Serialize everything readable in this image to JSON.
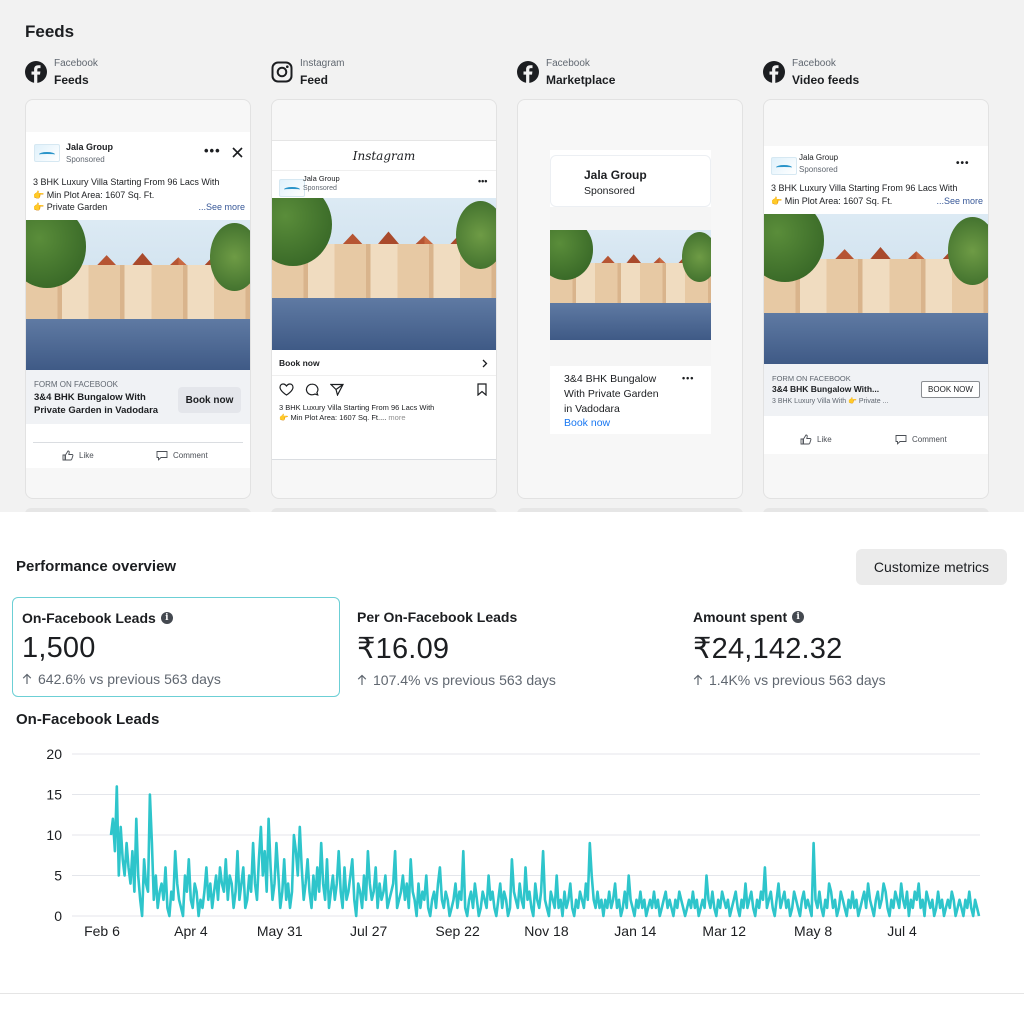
{
  "feeds": {
    "title": "Feeds",
    "placements": [
      {
        "platform": "Facebook",
        "name": "Feeds",
        "icon": "facebook-icon"
      },
      {
        "platform": "Instagram",
        "name": "Feed",
        "icon": "instagram-icon"
      },
      {
        "platform": "Facebook",
        "name": "Marketplace",
        "icon": "facebook-icon"
      },
      {
        "platform": "Facebook",
        "name": "Video feeds",
        "icon": "facebook-icon"
      }
    ],
    "ad": {
      "advertiser": "Jala Group",
      "sponsored": "Sponsored",
      "copy_line1": "3 BHK Luxury Villa Starting From 96 Lacs With",
      "copy_line2": "Min Plot Area: 1607 Sq. Ft.",
      "copy_line3": "Private Garden",
      "see_more": "...See more",
      "form_label": "FORM ON FACEBOOK",
      "headline_1": "3&4 BHK Bungalow With",
      "headline_2": "Private Garden in Vadodara",
      "headline_short": "3&4 BHK Bungalow With...",
      "description_short": "3 BHK Luxury Villa With",
      "description_tail": "Private ...",
      "book_now": "Book now",
      "book_now_caps": "BOOK NOW",
      "like": "Like",
      "comment": "Comment",
      "instagram_logo": "Instagram",
      "ig_caption_1": "3 BHK Luxury Villa Starting From 96 Lacs With",
      "ig_caption_2": "Min Plot Area: 1607 Sq. Ft....",
      "ig_more": "more",
      "mp_title_1": "3&4 BHK Bungalow",
      "mp_title_2": "With Private Garden",
      "mp_title_3": "in Vadodara",
      "vf_copy_2": "Min Plot Area: 1607 Sq. Ft.",
      "vf_see_more": "...See more"
    }
  },
  "performance": {
    "title": "Performance overview",
    "customize_label": "Customize metrics",
    "metrics": [
      {
        "label": "On-Facebook Leads",
        "value": "1,500",
        "delta": "642.6% vs previous 563 days",
        "info": true
      },
      {
        "label": "Per On-Facebook Leads",
        "value": "₹16.09",
        "delta": "107.4% vs previous 563 days",
        "info": false
      },
      {
        "label": "Amount spent",
        "value": "₹24,142.32",
        "delta": "1.4K% vs previous 563 days",
        "info": true
      }
    ]
  },
  "chart_data": {
    "type": "line",
    "title": "On-Facebook Leads",
    "xlabel": "",
    "ylabel": "",
    "ylim": [
      0,
      20
    ],
    "yticks": [
      0,
      5,
      10,
      15,
      20
    ],
    "xticks": [
      "Feb 6",
      "Apr 4",
      "May 31",
      "Jul 27",
      "Sep 22",
      "Nov 18",
      "Jan 14",
      "Mar 12",
      "May 8",
      "Jul 4"
    ],
    "grid": true,
    "color": "#2ec5cb",
    "series": [
      {
        "values": [
          10,
          12,
          8,
          16,
          5,
          11,
          7,
          5,
          9,
          6,
          4,
          8,
          3,
          12,
          5,
          2,
          0,
          7,
          4,
          3,
          15,
          9,
          2,
          5,
          1,
          3,
          4,
          2,
          6,
          1,
          0,
          3,
          2,
          8,
          4,
          2,
          1,
          0,
          5,
          3,
          7,
          2,
          1,
          4,
          3,
          0,
          2,
          1,
          3,
          6,
          2,
          4,
          1,
          3,
          5,
          2,
          6,
          4,
          3,
          7,
          2,
          5,
          4,
          1,
          3,
          8,
          2,
          4,
          6,
          1,
          2,
          5,
          3,
          9,
          4,
          2,
          7,
          11,
          5,
          8,
          3,
          12,
          6,
          2,
          4,
          9,
          5,
          1,
          3,
          7,
          2,
          4,
          1,
          3,
          10,
          8,
          5,
          11,
          6,
          2,
          4,
          7,
          3,
          1,
          5,
          2,
          6,
          3,
          9,
          4,
          2,
          7,
          1,
          3,
          5,
          2,
          4,
          8,
          3,
          1,
          6,
          2,
          3,
          5,
          7,
          2,
          0,
          4,
          3,
          1,
          5,
          2,
          8,
          4,
          2,
          3,
          6,
          1,
          4,
          2,
          3,
          5,
          1,
          2,
          3,
          4,
          8,
          1,
          2,
          3,
          5,
          2,
          4,
          1,
          7,
          3,
          2,
          0,
          4,
          1,
          3,
          2,
          5,
          1,
          0,
          2,
          3,
          1,
          4,
          6,
          2,
          1,
          3,
          2,
          0,
          1,
          2,
          4,
          1,
          3,
          2,
          8,
          1,
          0,
          2,
          3,
          1,
          4,
          2,
          0,
          1,
          3,
          2,
          1,
          5,
          2,
          3,
          1,
          0,
          2,
          4,
          1,
          3,
          2,
          0,
          1,
          7,
          3,
          2,
          1,
          4,
          2,
          1,
          6,
          2,
          3,
          1,
          0,
          4,
          2,
          1,
          3,
          8,
          2,
          1,
          0,
          3,
          2,
          1,
          5,
          1,
          2,
          0,
          3,
          1,
          2,
          4,
          1,
          0,
          2,
          1,
          3,
          2,
          1,
          4,
          2,
          9,
          5,
          2,
          1,
          3,
          1,
          2,
          0,
          2,
          1,
          3,
          1,
          2,
          4,
          1,
          2,
          0,
          1,
          3,
          1,
          5,
          2,
          1,
          0,
          2,
          1,
          3,
          1,
          2,
          0,
          1,
          2,
          1,
          3,
          1,
          2,
          0,
          1,
          2,
          3,
          1,
          2,
          1,
          0,
          2,
          1,
          3,
          2,
          1,
          0,
          1,
          2,
          1,
          3,
          1,
          2,
          0,
          1,
          2,
          1,
          5,
          2,
          1,
          3,
          1,
          0,
          2,
          1,
          3,
          2,
          1,
          2,
          0,
          1,
          2,
          3,
          1,
          0,
          2,
          1,
          4,
          1,
          2,
          3,
          1,
          0,
          2,
          1,
          3,
          2,
          6,
          1,
          2,
          3,
          1,
          0,
          2,
          4,
          1,
          2,
          3,
          1,
          2,
          0,
          1,
          3,
          2,
          1,
          0,
          2,
          3,
          1,
          2,
          1,
          0,
          9,
          2,
          1,
          3,
          1,
          0,
          2,
          1,
          4,
          3,
          1,
          2,
          0,
          1,
          3,
          2,
          1,
          0,
          2,
          1,
          3,
          1,
          2,
          0,
          1,
          2,
          3,
          1,
          4,
          2,
          1,
          0,
          2,
          3,
          1,
          2,
          4,
          3,
          1,
          0,
          2,
          1,
          3,
          2,
          1,
          4,
          2,
          1,
          3,
          0,
          2,
          1,
          3,
          2,
          4,
          1,
          2,
          0,
          3,
          2,
          1,
          2,
          0,
          1,
          3,
          1,
          2,
          0,
          1,
          2,
          1,
          3,
          2,
          0,
          1,
          2,
          1,
          0,
          2,
          1,
          3,
          1,
          0,
          2,
          1,
          0
        ]
      }
    ]
  }
}
